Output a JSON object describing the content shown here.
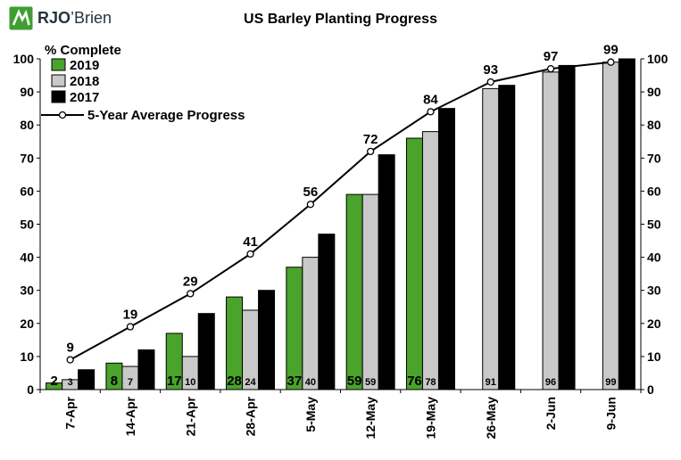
{
  "logo": {
    "brand_bold": "RJO",
    "brand_rest": "’Brien"
  },
  "chart_data": {
    "type": "bar",
    "title": "US Barley Planting Progress",
    "ylabel": "% Complete",
    "xlabel": "",
    "ylim": [
      0,
      100
    ],
    "ytick_step": 10,
    "grid": false,
    "legend_position": "top-left-inside",
    "categories": [
      "7-Apr",
      "14-Apr",
      "21-Apr",
      "28-Apr",
      "5-May",
      "12-May",
      "19-May",
      "26-May",
      "2-Jun",
      "9-Jun"
    ],
    "series": [
      {
        "name": "2019",
        "kind": "bar",
        "color": "#4aa32b",
        "stroke": "#000000",
        "values": [
          2,
          8,
          17,
          28,
          37,
          59,
          76,
          null,
          null,
          null
        ],
        "show_labels": true,
        "label_size": 15
      },
      {
        "name": "2018",
        "kind": "bar",
        "color": "#c9c9c9",
        "stroke": "#000000",
        "values": [
          3,
          7,
          10,
          24,
          40,
          59,
          78,
          91,
          96,
          99
        ],
        "show_labels": true,
        "label_size": 11
      },
      {
        "name": "2017",
        "kind": "bar",
        "color": "#000000",
        "stroke": "#000000",
        "values": [
          6,
          12,
          23,
          30,
          47,
          71,
          85,
          92,
          98,
          100
        ],
        "show_labels": false,
        "label_size": 11
      },
      {
        "name": "5-Year Average Progress",
        "kind": "line",
        "color": "#000000",
        "marker_fill": "#ffffff",
        "values": [
          9,
          19,
          29,
          41,
          56,
          72,
          84,
          93,
          97,
          99
        ],
        "show_labels": true,
        "label_size": 15
      }
    ]
  }
}
